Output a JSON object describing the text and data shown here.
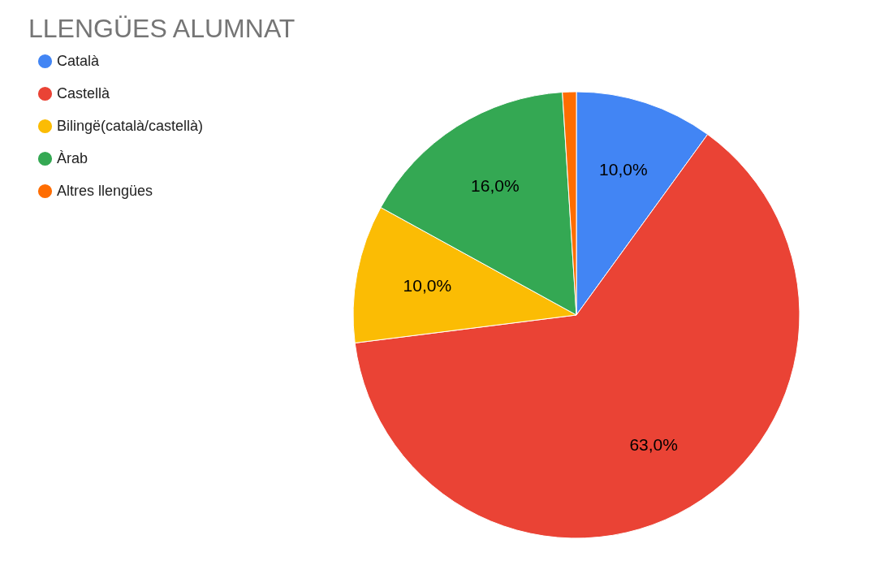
{
  "chart_data": {
    "type": "pie",
    "title": "LLENGÜES ALUMNAT",
    "categories": [
      "Català",
      "Castellà",
      "Bilingë(català/castellà)",
      "Àrab",
      "Altres llengües"
    ],
    "values": [
      10,
      63,
      10,
      16,
      1
    ],
    "colors": [
      "#4285f4",
      "#ea4335",
      "#fbbc04",
      "#34a853",
      "#ff6d01"
    ],
    "value_labels": [
      "10,0%",
      "63,0%",
      "10,0%",
      "16,0%",
      null
    ],
    "legend": "top left"
  }
}
